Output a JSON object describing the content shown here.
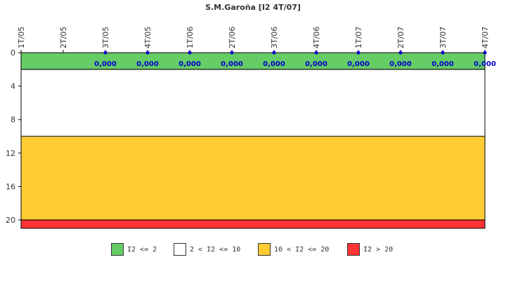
{
  "chart_data": {
    "type": "line",
    "title": "S.M.Garoña [I2 4T/07]",
    "categories": [
      "1T/05",
      "2T/05",
      "3T/05",
      "4T/05",
      "1T/06",
      "2T/06",
      "3T/06",
      "4T/06",
      "1T/07",
      "2T/07",
      "3T/07",
      "4T/07"
    ],
    "series": [
      {
        "values": [
          null,
          null,
          0,
          0,
          0,
          0,
          0,
          0,
          0,
          0,
          0,
          0
        ],
        "data_labels": [
          null,
          null,
          "0,000",
          "0,000",
          "0,000",
          "0,000",
          "0,000",
          "0,000",
          "0,000",
          "0,000",
          "0,000",
          "0,000"
        ],
        "color": "#0000cc"
      }
    ],
    "y_axis": {
      "reversed": true,
      "ylim": [
        0,
        21
      ],
      "ticks": [
        "0",
        "4",
        "8",
        "12",
        "16",
        "20"
      ]
    },
    "bands": [
      {
        "from": 0,
        "to": 2,
        "color": "#66cc66"
      },
      {
        "from": 2,
        "to": 10,
        "color": "#ffffff"
      },
      {
        "from": 10,
        "to": 20,
        "color": "#ffcc33"
      },
      {
        "from": 20,
        "to": 21,
        "color": "#ff3333"
      }
    ],
    "grid": false,
    "legend_position": "bottom",
    "legend": [
      {
        "label": "I2 <= 2",
        "color": "#66cc66"
      },
      {
        "label": "2 < I2 <= 10",
        "color": "#ffffff"
      },
      {
        "label": "10 < I2 <= 20",
        "color": "#ffcc33"
      },
      {
        "label": "I2 > 20",
        "color": "#ff3333"
      }
    ]
  }
}
